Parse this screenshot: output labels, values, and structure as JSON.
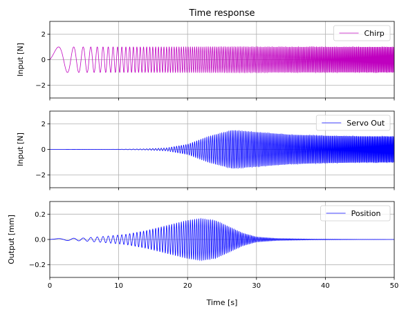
{
  "chart_data": {
    "type": "line",
    "title": "Time response",
    "xlabel": "Time [s]",
    "xlim": [
      0,
      50
    ],
    "xticks": [
      0,
      10,
      20,
      30,
      40,
      50
    ],
    "grid": true,
    "shared_x": true,
    "subplots": [
      {
        "ylabel": "Input [N]",
        "ylim": [
          -3,
          3
        ],
        "yticks": [
          -2,
          0,
          2
        ],
        "legend_loc": "top-right",
        "series": [
          {
            "name": "Chirp",
            "color": "#bf00bf",
            "signal": "chirp",
            "amplitude": 1.0,
            "freq_start_hz": 0.1,
            "freq_rate_hz_per_s": 0.15,
            "points": [
              {
                "x": 0,
                "y": 0
              },
              {
                "x": 2.2,
                "y": 1.0
              },
              {
                "x": 4.6,
                "y": -1.0
              },
              {
                "x": 10,
                "y": 1.0
              },
              {
                "x": 20,
                "y": -1.0
              },
              {
                "x": 50,
                "y": 1.0
              }
            ]
          }
        ]
      },
      {
        "ylabel": "Input [N]",
        "ylim": [
          -3,
          3
        ],
        "yticks": [
          -2,
          0,
          2
        ],
        "legend_loc": "top-right",
        "series": [
          {
            "name": "Servo Out",
            "color": "#0000ff",
            "signal": "envelope",
            "envelope": [
              {
                "x": 0,
                "y": 0.0
              },
              {
                "x": 10,
                "y": 0.01
              },
              {
                "x": 14,
                "y": 0.04
              },
              {
                "x": 17,
                "y": 0.12
              },
              {
                "x": 20,
                "y": 0.4
              },
              {
                "x": 23,
                "y": 1.0
              },
              {
                "x": 26.5,
                "y": 1.5
              },
              {
                "x": 30,
                "y": 1.35
              },
              {
                "x": 35,
                "y": 1.15
              },
              {
                "x": 40,
                "y": 1.07
              },
              {
                "x": 45,
                "y": 1.03
              },
              {
                "x": 50,
                "y": 1.02
              }
            ]
          }
        ]
      },
      {
        "ylabel": "Output [mm]",
        "ylim": [
          -0.3,
          0.3
        ],
        "yticks": [
          -0.2,
          0.0,
          0.2
        ],
        "ytick_labels": [
          "−0.2",
          "0.0",
          "0.2"
        ],
        "legend_loc": "top-right",
        "series": [
          {
            "name": "Position",
            "color": "#0000ff",
            "signal": "envelope",
            "envelope": [
              {
                "x": 0,
                "y": 0.005
              },
              {
                "x": 5,
                "y": 0.012
              },
              {
                "x": 8,
                "y": 0.025
              },
              {
                "x": 11,
                "y": 0.04
              },
              {
                "x": 14,
                "y": 0.07
              },
              {
                "x": 17,
                "y": 0.11
              },
              {
                "x": 20,
                "y": 0.15
              },
              {
                "x": 22,
                "y": 0.165
              },
              {
                "x": 24,
                "y": 0.15
              },
              {
                "x": 26,
                "y": 0.1
              },
              {
                "x": 28,
                "y": 0.05
              },
              {
                "x": 30,
                "y": 0.02
              },
              {
                "x": 33,
                "y": 0.008
              },
              {
                "x": 38,
                "y": 0.003
              },
              {
                "x": 44,
                "y": 0.001
              },
              {
                "x": 50,
                "y": 0.0
              }
            ]
          }
        ]
      }
    ]
  }
}
